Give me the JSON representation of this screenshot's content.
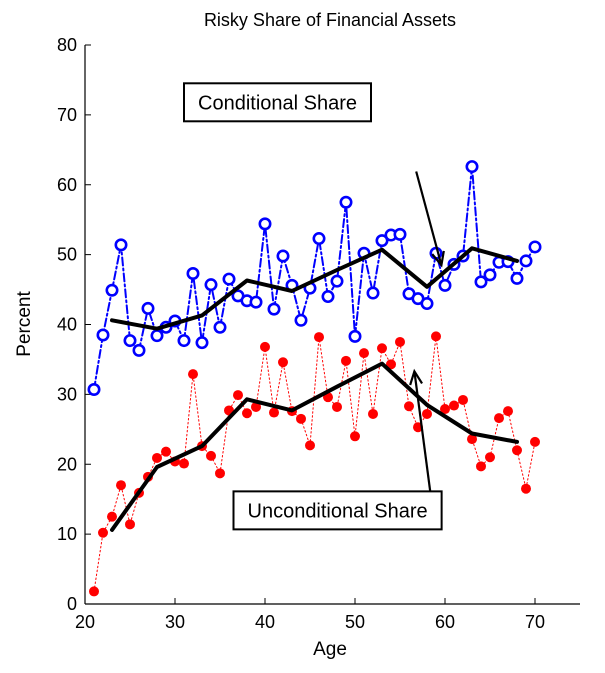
{
  "chart_data": {
    "type": "line",
    "title": "Risky Share of Financial Assets",
    "xlabel": "Age",
    "ylabel": "Percent",
    "xlim": [
      20,
      75
    ],
    "ylim": [
      0,
      80
    ],
    "xticks": [
      20,
      30,
      40,
      50,
      60,
      70
    ],
    "yticks": [
      0,
      10,
      20,
      30,
      40,
      50,
      60,
      70,
      80
    ],
    "grid": false,
    "series": [
      {
        "marker": "open-circle",
        "line": "dash-dot",
        "color": "#0000ff",
        "x": [
          21,
          22,
          23,
          24,
          25,
          26,
          27,
          28,
          29,
          30,
          31,
          32,
          33,
          34,
          35,
          36,
          37,
          38,
          39,
          40,
          41,
          42,
          43,
          44,
          45,
          46,
          47,
          48,
          49,
          50,
          51,
          52,
          53,
          54,
          55,
          56,
          57,
          58,
          59,
          60,
          61,
          62,
          63,
          64,
          65,
          66,
          67,
          68,
          69,
          70
        ],
        "y": [
          30.7,
          38.5,
          44.9,
          51.4,
          37.7,
          36.3,
          42.3,
          38.4,
          39.6,
          40.5,
          37.7,
          47.3,
          37.4,
          45.7,
          39.6,
          46.5,
          44.1,
          43.4,
          43.2,
          54.4,
          42.2,
          49.8,
          45.6,
          40.6,
          45.2,
          52.3,
          44.0,
          46.2,
          57.5,
          38.3,
          50.2,
          44.5,
          52.0,
          52.8,
          52.9,
          44.4,
          43.7,
          43.0,
          50.2,
          45.6,
          48.6,
          49.8,
          62.6,
          46.1,
          47.1,
          48.9,
          49.0,
          46.6,
          49.1,
          51.1
        ]
      },
      {
        "marker": "filled-circle",
        "line": "dotted",
        "color": "#ff0000",
        "x": [
          21,
          22,
          23,
          24,
          25,
          26,
          27,
          28,
          29,
          30,
          31,
          32,
          33,
          34,
          35,
          36,
          37,
          38,
          39,
          40,
          41,
          42,
          43,
          44,
          45,
          46,
          47,
          48,
          49,
          50,
          51,
          52,
          53,
          54,
          55,
          56,
          57,
          58,
          59,
          60,
          61,
          62,
          63,
          64,
          65,
          66,
          67,
          68,
          69,
          70
        ],
        "y": [
          1.8,
          10.2,
          12.5,
          17.0,
          11.4,
          15.9,
          18.2,
          20.9,
          21.8,
          20.4,
          20.1,
          32.9,
          22.6,
          21.2,
          18.7,
          27.7,
          29.9,
          27.3,
          28.2,
          36.8,
          27.4,
          34.6,
          27.6,
          26.5,
          22.7,
          38.2,
          29.6,
          28.2,
          34.8,
          24.0,
          35.9,
          27.2,
          36.6,
          34.3,
          37.5,
          28.3,
          25.3,
          27.2,
          38.3,
          27.9,
          28.4,
          29.2,
          23.6,
          19.7,
          21.0,
          26.6,
          27.6,
          22.0,
          16.5,
          23.2
        ]
      },
      {
        "marker": "none",
        "line": "solid-thick",
        "color": "#000000",
        "x": [
          23,
          28,
          33,
          38,
          43,
          48,
          53,
          58,
          63,
          68
        ],
        "y": [
          40.6,
          39.4,
          41.3,
          46.3,
          44.8,
          47.8,
          50.7,
          45.4,
          50.9,
          49.1
        ]
      },
      {
        "marker": "none",
        "line": "solid-thick",
        "color": "#000000",
        "x": [
          23,
          28,
          33,
          38,
          43,
          48,
          53,
          58,
          63,
          68
        ],
        "y": [
          10.6,
          19.6,
          22.6,
          29.3,
          27.7,
          31.1,
          34.4,
          28.5,
          24.4,
          23.2
        ]
      }
    ],
    "annotations": [
      {
        "text": "Conditional Share",
        "box_x": 31,
        "box_y": 71.8,
        "arrow_from": [
          56.8,
          61.9
        ],
        "arrow_to": [
          59.6,
          48.5
        ]
      },
      {
        "text": "Unconditional Share",
        "box_x": 36.5,
        "box_y": 13.4,
        "arrow_from": [
          58.4,
          15.7
        ],
        "arrow_to": [
          56.6,
          33.3
        ]
      }
    ]
  }
}
